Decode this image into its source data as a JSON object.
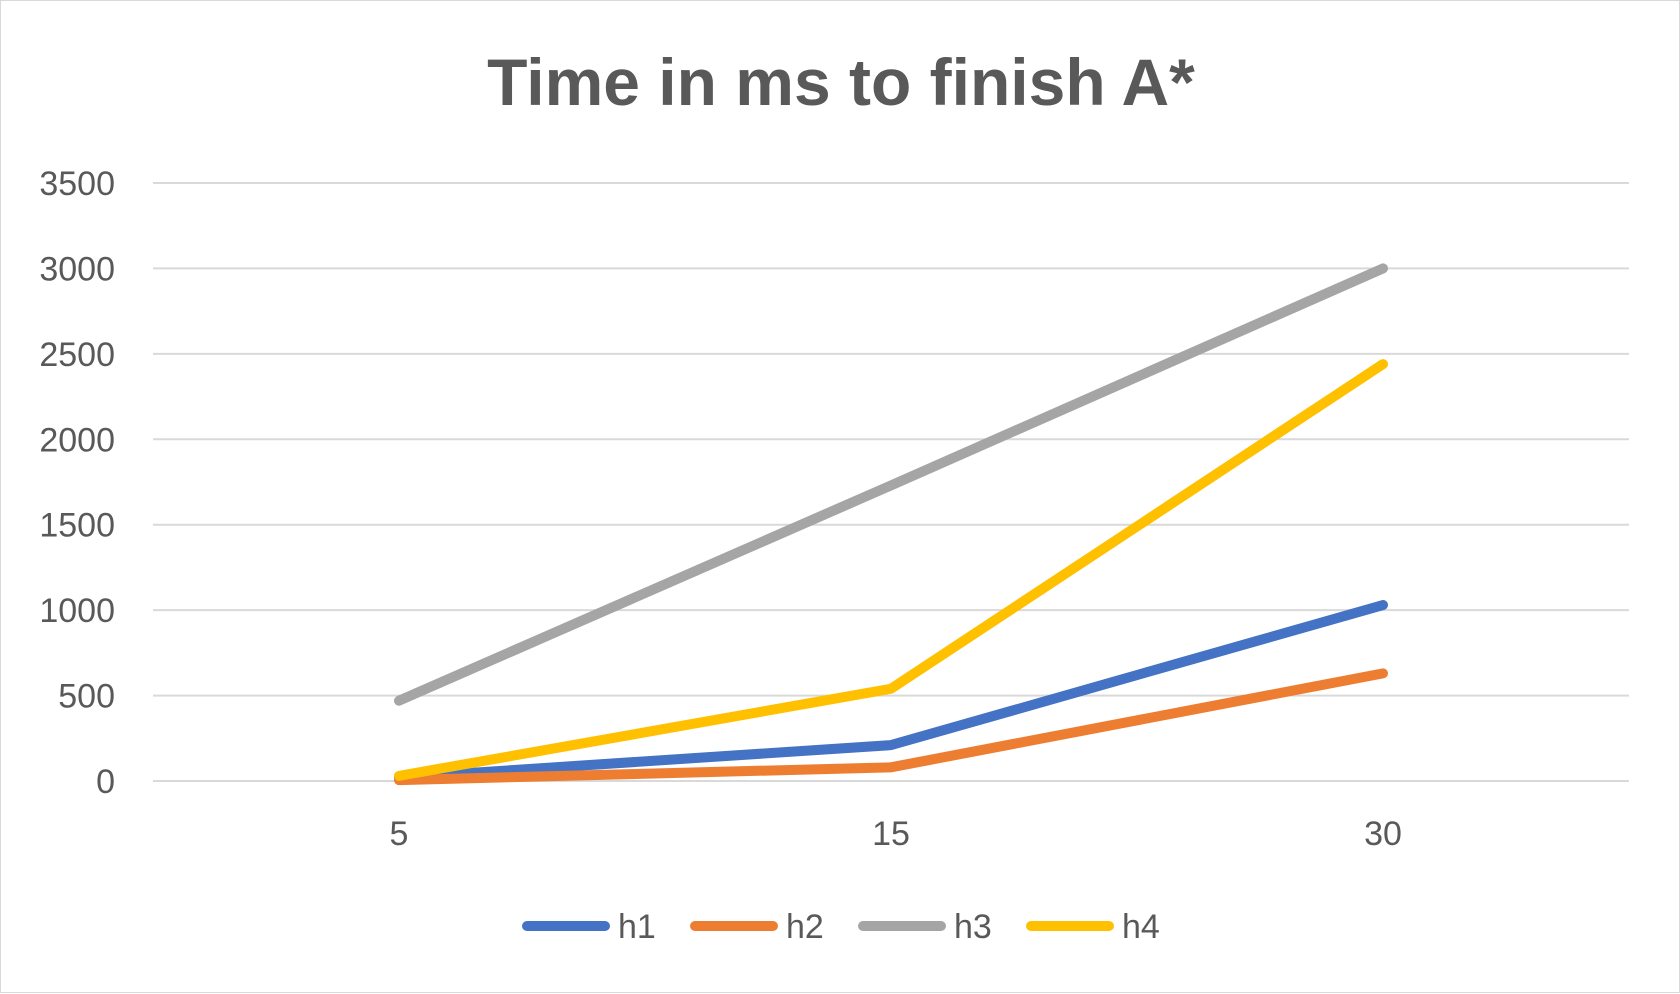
{
  "chart_data": {
    "type": "line",
    "title": "Time in ms to finish A*",
    "xlabel": "",
    "ylabel": "",
    "categories": [
      "5",
      "15",
      "30"
    ],
    "y_ticks": [
      0,
      500,
      1000,
      1500,
      2000,
      2500,
      3000,
      3500
    ],
    "ylim": [
      0,
      3500
    ],
    "grid": true,
    "legend_position": "bottom",
    "series": [
      {
        "name": "h1",
        "color": "#4472C4",
        "values": [
          20,
          210,
          1030
        ]
      },
      {
        "name": "h2",
        "color": "#ED7D31",
        "values": [
          5,
          80,
          630
        ]
      },
      {
        "name": "h3",
        "color": "#A5A5A5",
        "values": [
          470,
          1730,
          3000
        ]
      },
      {
        "name": "h4",
        "color": "#FFC000",
        "values": [
          30,
          540,
          2440
        ]
      }
    ]
  }
}
